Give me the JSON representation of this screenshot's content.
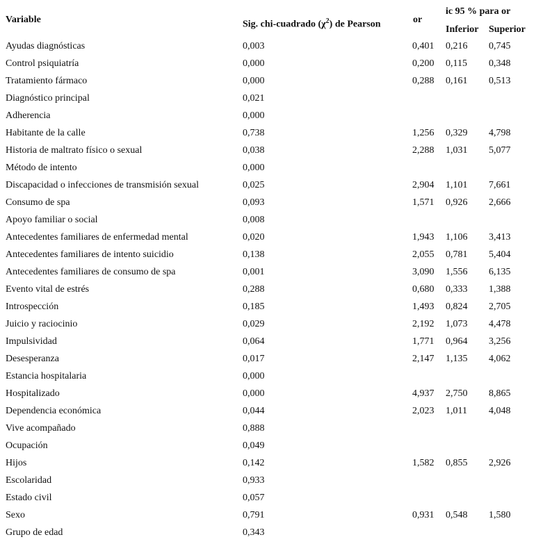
{
  "header": {
    "variable": "Variable",
    "sig_prefix": "Sig. chi-cuadrado (χ",
    "sig_sup": "2",
    "sig_suffix": ") de Pearson",
    "or": "or",
    "ic": "ic 95 % para or",
    "inferior": "Inferior",
    "superior": "Superior"
  },
  "rows": [
    {
      "variable": "Ayudas diagnósticas",
      "sig": "0,003",
      "or": "0,401",
      "inf": "0,216",
      "sup": "0,745"
    },
    {
      "variable": "Control psiquiatría",
      "sig": "0,000",
      "or": "0,200",
      "inf": "0,115",
      "sup": "0,348"
    },
    {
      "variable": "Tratamiento fármaco",
      "sig": "0,000",
      "or": "0,288",
      "inf": "0,161",
      "sup": "0,513"
    },
    {
      "variable": "Diagnóstico principal",
      "sig": "0,021",
      "or": "",
      "inf": "",
      "sup": ""
    },
    {
      "variable": "Adherencia",
      "sig": "0,000",
      "or": "",
      "inf": "",
      "sup": ""
    },
    {
      "variable": "Habitante de la calle",
      "sig": "0,738",
      "or": "1,256",
      "inf": "0,329",
      "sup": "4,798"
    },
    {
      "variable": "Historia de maltrato físico o sexual",
      "sig": "0,038",
      "or": "2,288",
      "inf": "1,031",
      "sup": "5,077"
    },
    {
      "variable": "Método de intento",
      "sig": "0,000",
      "or": "",
      "inf": "",
      "sup": ""
    },
    {
      "variable": "Discapacidad o infecciones de transmisión sexual",
      "sig": "0,025",
      "or": "2,904",
      "inf": "1,101",
      "sup": "7,661"
    },
    {
      "variable": "Consumo de spa",
      "sig": "0,093",
      "or": "1,571",
      "inf": "0,926",
      "sup": "2,666"
    },
    {
      "variable": "Apoyo familiar o social",
      "sig": "0,008",
      "or": "",
      "inf": "",
      "sup": ""
    },
    {
      "variable": "Antecedentes familiares de enfermedad mental",
      "sig": "0,020",
      "or": "1,943",
      "inf": "1,106",
      "sup": "3,413"
    },
    {
      "variable": "Antecedentes familiares de intento suicidio",
      "sig": "0,138",
      "or": "2,055",
      "inf": "0,781",
      "sup": "5,404"
    },
    {
      "variable": "Antecedentes familiares de consumo de spa",
      "sig": "0,001",
      "or": "3,090",
      "inf": "1,556",
      "sup": "6,135"
    },
    {
      "variable": "Evento vital de estrés",
      "sig": "0,288",
      "or": "0,680",
      "inf": "0,333",
      "sup": "1,388"
    },
    {
      "variable": "Introspección",
      "sig": "0,185",
      "or": "1,493",
      "inf": "0,824",
      "sup": "2,705"
    },
    {
      "variable": "Juicio y raciocinio",
      "sig": "0,029",
      "or": "2,192",
      "inf": "1,073",
      "sup": "4,478"
    },
    {
      "variable": "Impulsividad",
      "sig": "0,064",
      "or": "1,771",
      "inf": "0,964",
      "sup": "3,256"
    },
    {
      "variable": "Desesperanza",
      "sig": "0,017",
      "or": "2,147",
      "inf": "1,135",
      "sup": "4,062"
    },
    {
      "variable": "Estancia hospitalaria",
      "sig": "0,000",
      "or": "",
      "inf": "",
      "sup": ""
    },
    {
      "variable": "Hospitalizado",
      "sig": "0,000",
      "or": "4,937",
      "inf": "2,750",
      "sup": "8,865"
    },
    {
      "variable": "Dependencia económica",
      "sig": "0,044",
      "or": "2,023",
      "inf": "1,011",
      "sup": "4,048"
    },
    {
      "variable": "Vive acompañado",
      "sig": "0,888",
      "or": "",
      "inf": "",
      "sup": ""
    },
    {
      "variable": "Ocupación",
      "sig": "0,049",
      "or": "",
      "inf": "",
      "sup": ""
    },
    {
      "variable": "Hijos",
      "sig": "0,142",
      "or": "1,582",
      "inf": "0,855",
      "sup": "2,926"
    },
    {
      "variable": "Escolaridad",
      "sig": "0,933",
      "or": "",
      "inf": "",
      "sup": ""
    },
    {
      "variable": "Estado civil",
      "sig": "0,057",
      "or": "",
      "inf": "",
      "sup": ""
    },
    {
      "variable": "Sexo",
      "sig": "0,791",
      "or": "0,931",
      "inf": "0,548",
      "sup": "1,580"
    },
    {
      "variable": "Grupo de edad",
      "sig": "0,343",
      "or": "",
      "inf": "",
      "sup": ""
    }
  ]
}
